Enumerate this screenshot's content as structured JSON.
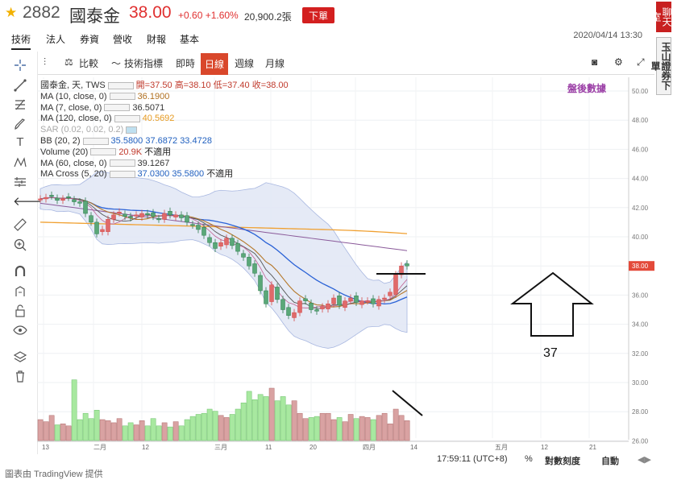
{
  "header": {
    "code": "2882",
    "name": "國泰金",
    "price": "38.00",
    "change": "+0.60 +1.60%",
    "volume": "20,900.2張",
    "order_label": "下單"
  },
  "tabs": [
    {
      "label": "技術"
    },
    {
      "label": "法人"
    },
    {
      "label": "券資"
    },
    {
      "label": "營收"
    },
    {
      "label": "財報"
    },
    {
      "label": "基本"
    }
  ],
  "datetime": "2020/04/14 13:30",
  "side_buttons": [
    {
      "label": "聊天室"
    },
    {
      "label": "玉山證券下單"
    }
  ],
  "toolbar": {
    "compare": "比較",
    "indicators": "技術指標",
    "intraday": "即時",
    "daily": "日線",
    "weekly": "週線",
    "monthly": "月線"
  },
  "legend": {
    "main_name": "國泰金, 天, TWS",
    "open": "開=37.50",
    "high": "高=38.10",
    "low": "低=37.40",
    "close": "收=38.00",
    "ma10_label": "MA (10, close, 0)",
    "ma10_val": "36.1900",
    "ma7_label": "MA (7, close, 0)",
    "ma7_val": "36.5071",
    "ma120_label": "MA (120, close, 0)",
    "ma120_val": "40.5692",
    "sar_label": "SAR (0.02, 0.02, 0.2)",
    "bb_label": "BB (20, 2)",
    "bb_val1": "35.5800",
    "bb_val2": "37.6872",
    "bb_val3": "33.4728",
    "vol_label": "Volume (20)",
    "vol_val": "20.9K",
    "vol_na": "不適用",
    "ma60_label": "MA (60, close, 0)",
    "ma60_val": "39.1267",
    "cross_label": "MA Cross (5, 20)",
    "cross_val1": "37.0300",
    "cross_val2": "35.5800",
    "cross_na": "不適用"
  },
  "watermark": "盤後數據",
  "annotation_number": "37",
  "price_axis": [
    "50.00",
    "48.00",
    "46.00",
    "44.00",
    "42.00",
    "40.00",
    "38.00",
    "36.00",
    "34.00",
    "32.00",
    "30.00",
    "28.00",
    "26.00"
  ],
  "last_price_tag": "38.00",
  "time_axis": [
    "13",
    "二月",
    "12",
    "三月",
    "11",
    "20",
    "四月",
    "14",
    "五月",
    "12",
    "21"
  ],
  "footer": {
    "clock": "17:59:11 (UTC+8)",
    "percent": "%",
    "log": "對數刻度",
    "auto": "自動"
  },
  "credit": "圖表由 TradingView 提供",
  "colors": {
    "up": "#e03030",
    "down": "#2e8b57",
    "accent": "#d9472b"
  }
}
